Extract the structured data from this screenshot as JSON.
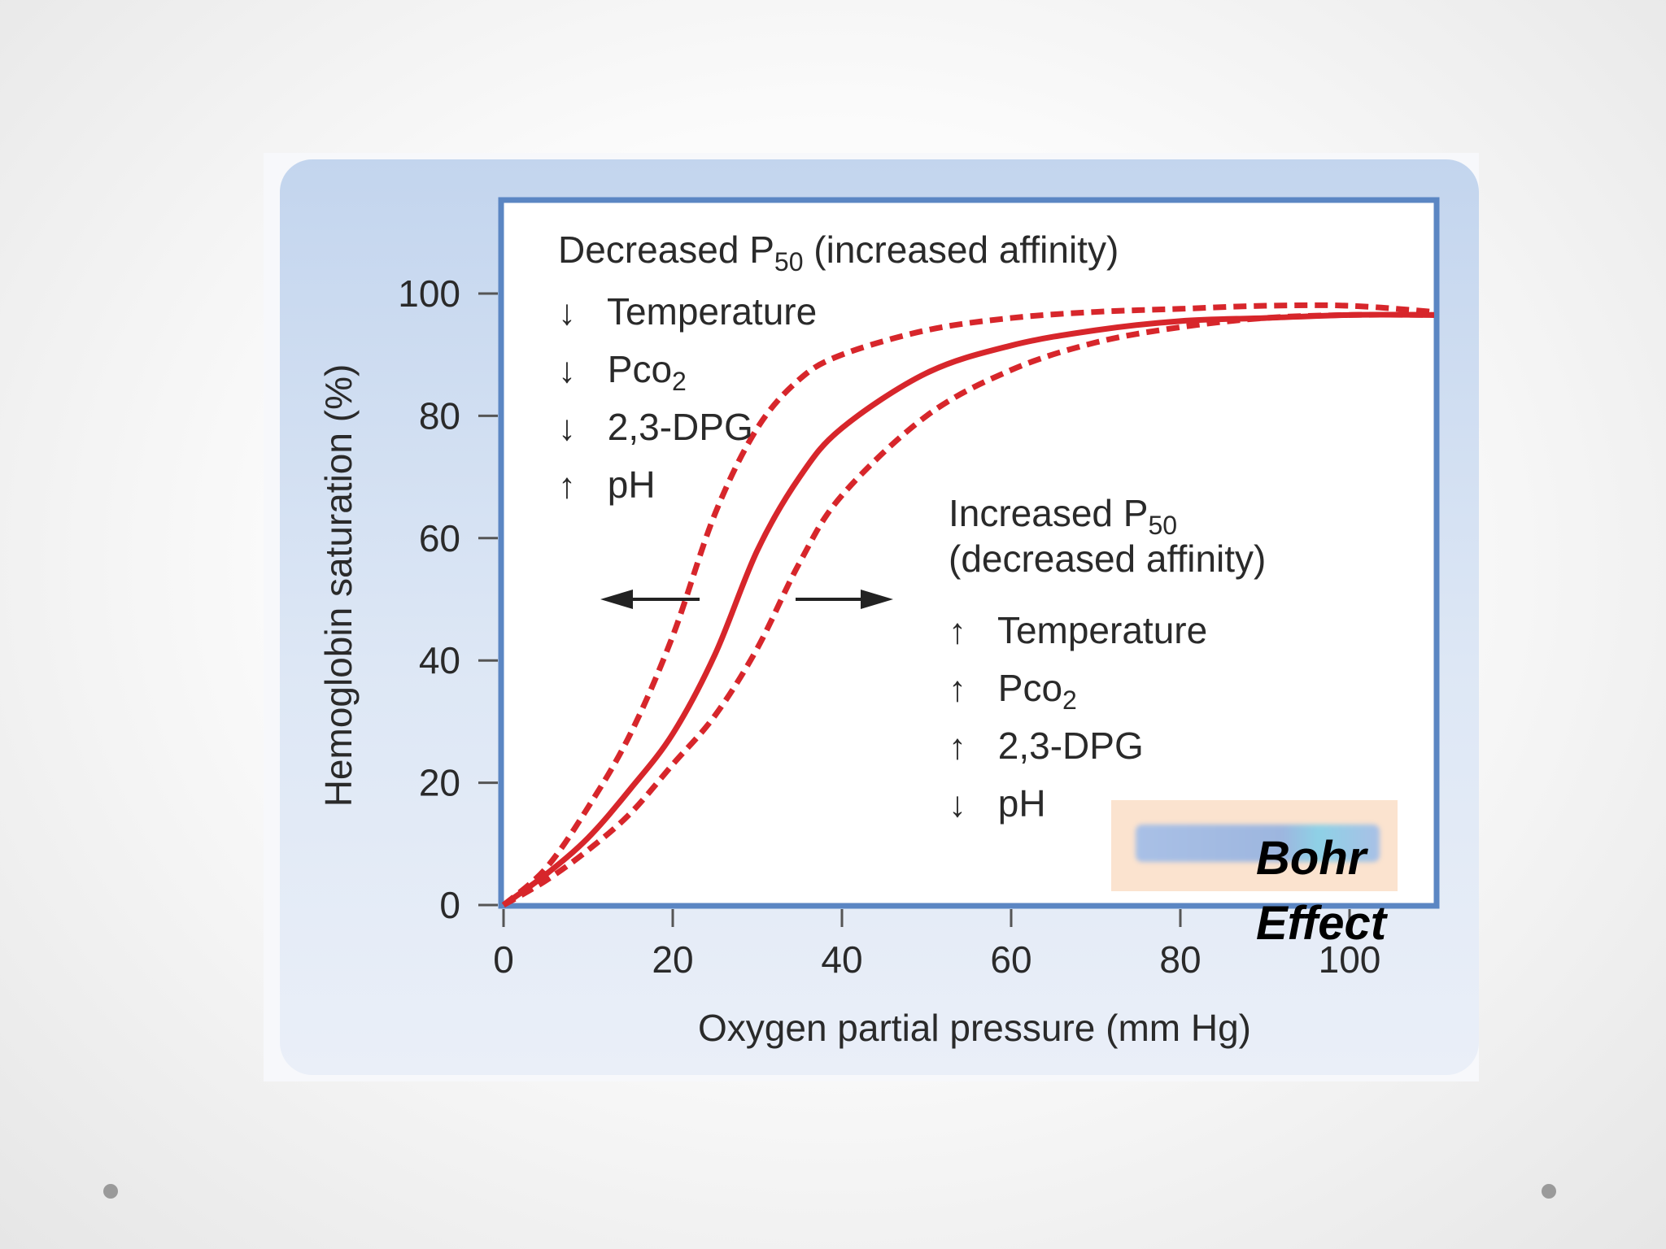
{
  "chart_data": {
    "type": "line",
    "xlabel": "Oxygen partial pressure (mm Hg)",
    "ylabel": "Hemoglobin saturation (%)",
    "xlim": [
      0,
      110
    ],
    "ylim": [
      0,
      100
    ],
    "xticks": [
      "0",
      "20",
      "40",
      "60",
      "80",
      "100"
    ],
    "yticks": [
      "0",
      "20",
      "40",
      "60",
      "80",
      "100"
    ],
    "grid": false,
    "series": [
      {
        "style": "dashed",
        "color": "#d7262b",
        "x": [
          0,
          5,
          10,
          15,
          20,
          25,
          30,
          35,
          40,
          50,
          60,
          70,
          80,
          90,
          100,
          110
        ],
        "y": [
          0,
          6,
          16,
          28,
          44,
          64,
          78,
          86,
          90,
          94,
          96,
          97,
          97.5,
          98,
          98,
          97
        ]
      },
      {
        "style": "solid",
        "color": "#d7262b",
        "x": [
          0,
          5,
          10,
          15,
          20,
          25,
          30,
          35,
          40,
          50,
          60,
          70,
          80,
          90,
          100,
          110
        ],
        "y": [
          0,
          5,
          11,
          19,
          28,
          41,
          58,
          70,
          78,
          87,
          91.5,
          94,
          95.5,
          96,
          96.5,
          96.5
        ]
      },
      {
        "style": "dashed",
        "color": "#d7262b",
        "x": [
          0,
          5,
          10,
          15,
          20,
          25,
          30,
          35,
          40,
          50,
          60,
          70,
          80,
          90,
          100,
          110
        ],
        "y": [
          0,
          4,
          9,
          15,
          23,
          31,
          42,
          56,
          67,
          80,
          87.5,
          92,
          94.5,
          96,
          96.5,
          96.5
        ]
      }
    ],
    "annotations": {
      "left_title": "Decreased P",
      "left_title_sub": "50",
      "left_title_rest": " (increased affinity)",
      "left_items": [
        {
          "arrow": "↓",
          "text": "Temperature",
          "sub": ""
        },
        {
          "arrow": "↓",
          "text": "Pco",
          "sub": "2"
        },
        {
          "arrow": "↓",
          "text": "2,3-DPG",
          "sub": ""
        },
        {
          "arrow": "↑",
          "text": "pH",
          "sub": ""
        }
      ],
      "right_title": "Increased P",
      "right_title_sub": "50",
      "right_title_line2": "(decreased affinity)",
      "right_items": [
        {
          "arrow": "↑",
          "text": "Temperature",
          "sub": ""
        },
        {
          "arrow": "↑",
          "text": "Pco",
          "sub": "2"
        },
        {
          "arrow": "↑",
          "text": "2,3-DPG",
          "sub": ""
        },
        {
          "arrow": "↓",
          "text": "pH",
          "sub": ""
        }
      ],
      "shift_arrows_at_y": 50
    }
  },
  "overlay": {
    "badge_line1": "Bohr",
    "badge_line2": "Effect"
  },
  "colors": {
    "curve": "#d7262b",
    "frame": "#5b86c3",
    "panel": "#c3d5ee"
  }
}
